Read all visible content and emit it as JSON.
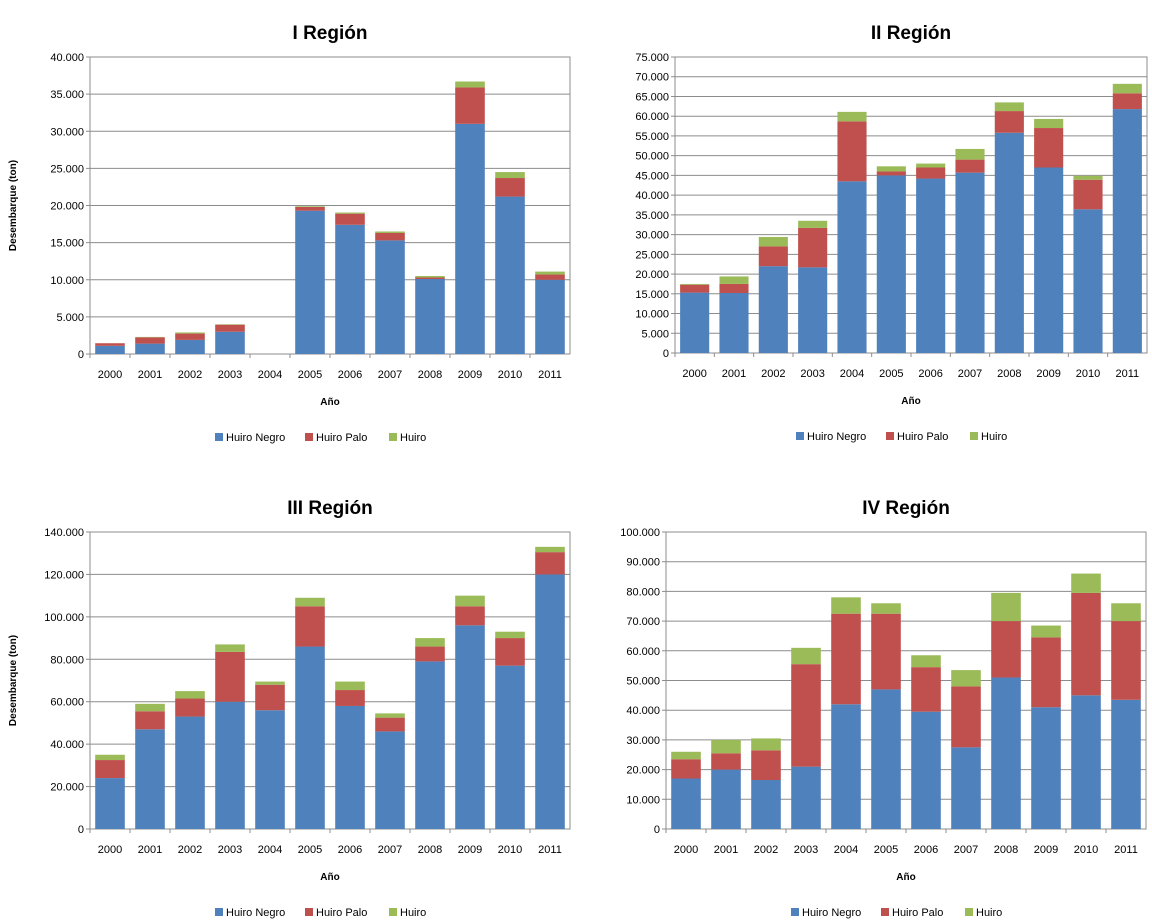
{
  "colors": {
    "Huiro Negro": "#4F81BD",
    "Huiro Palo": "#C0504D",
    "Huiro": "#9BBB59"
  },
  "chart_data": [
    {
      "type": "bar",
      "stacked": true,
      "title": "I Región",
      "xlabel": "Año",
      "ylabel": "Desembarque (ton)",
      "ylim": [
        0,
        40000
      ],
      "ystep": 5000,
      "yticks": [
        "0",
        "5.000",
        "10.000",
        "15.000",
        "20.000",
        "25.000",
        "30.000",
        "35.000",
        "40.000"
      ],
      "categories": [
        "2000",
        "2001",
        "2002",
        "2003",
        "2004",
        "2005",
        "2006",
        "2007",
        "2008",
        "2009",
        "2010",
        "2011"
      ],
      "series": [
        {
          "name": "Huiro Negro",
          "values": [
            1100,
            1400,
            1900,
            3000,
            0,
            19300,
            17400,
            15300,
            10100,
            31000,
            21200,
            10000
          ]
        },
        {
          "name": "Huiro Palo",
          "values": [
            350,
            850,
            850,
            950,
            0,
            500,
            1500,
            1000,
            200,
            4900,
            2500,
            700
          ]
        },
        {
          "name": "Huiro",
          "values": [
            0,
            50,
            150,
            50,
            0,
            100,
            150,
            200,
            200,
            800,
            800,
            400
          ]
        }
      ],
      "legend_position": "bottom",
      "grid": true
    },
    {
      "type": "bar",
      "stacked": true,
      "title": "II Región",
      "xlabel": "Año",
      "ylabel": "Desembarque (ton)",
      "ylim": [
        0,
        75000
      ],
      "ystep": 5000,
      "yticks": [
        "0",
        "5.000",
        "10.000",
        "15.000",
        "20.000",
        "25.000",
        "30.000",
        "35.000",
        "40.000",
        "45.000",
        "50.000",
        "55.000",
        "60.000",
        "65.000",
        "70.000",
        "75.000"
      ],
      "categories": [
        "2000",
        "2001",
        "2002",
        "2003",
        "2004",
        "2005",
        "2006",
        "2007",
        "2008",
        "2009",
        "2010",
        "2011"
      ],
      "series": [
        {
          "name": "Huiro Negro",
          "values": [
            15300,
            15200,
            22000,
            21700,
            43500,
            45000,
            44200,
            45700,
            55800,
            47000,
            36400,
            61800
          ]
        },
        {
          "name": "Huiro Palo",
          "values": [
            2000,
            2300,
            5000,
            10000,
            15200,
            1000,
            2800,
            3300,
            5500,
            10000,
            7500,
            4000
          ]
        },
        {
          "name": "Huiro",
          "values": [
            200,
            1900,
            2400,
            1800,
            2400,
            1300,
            1000,
            2700,
            2200,
            2300,
            1000,
            2400
          ]
        }
      ],
      "legend_position": "bottom",
      "grid": true
    },
    {
      "type": "bar",
      "stacked": true,
      "title": "III Región",
      "xlabel": "Año",
      "ylabel": "Desembarque (ton)",
      "ylim": [
        0,
        140000
      ],
      "ystep": 20000,
      "yticks": [
        "0",
        "20.000",
        "40.000",
        "60.000",
        "80.000",
        "100.000",
        "120.000",
        "140.000"
      ],
      "categories": [
        "2000",
        "2001",
        "2002",
        "2003",
        "2004",
        "2005",
        "2006",
        "2007",
        "2008",
        "2009",
        "2010",
        "2011"
      ],
      "series": [
        {
          "name": "Huiro Negro",
          "values": [
            24000,
            47000,
            53000,
            60000,
            56000,
            86000,
            58000,
            46000,
            79000,
            96000,
            77000,
            120000
          ]
        },
        {
          "name": "Huiro Palo",
          "values": [
            8500,
            8500,
            8500,
            23500,
            12000,
            19000,
            7500,
            6500,
            7000,
            9000,
            13000,
            10500
          ]
        },
        {
          "name": "Huiro",
          "values": [
            2500,
            3500,
            3500,
            3500,
            1500,
            4000,
            4000,
            2000,
            4000,
            5000,
            3000,
            2500
          ]
        }
      ],
      "legend_position": "bottom",
      "grid": true
    },
    {
      "type": "bar",
      "stacked": true,
      "title": "IV Región",
      "xlabel": "Año",
      "ylabel": "Desembarque (ton)",
      "ylim": [
        0,
        100000
      ],
      "ystep": 10000,
      "yticks": [
        "0",
        "10.000",
        "20.000",
        "30.000",
        "40.000",
        "50.000",
        "60.000",
        "70.000",
        "80.000",
        "90.000",
        "100.000"
      ],
      "categories": [
        "2000",
        "2001",
        "2002",
        "2003",
        "2004",
        "2005",
        "2006",
        "2007",
        "2008",
        "2009",
        "2010",
        "2011"
      ],
      "series": [
        {
          "name": "Huiro Negro",
          "values": [
            17000,
            20000,
            16500,
            21000,
            42000,
            47000,
            39500,
            27500,
            51000,
            41000,
            45000,
            43500
          ]
        },
        {
          "name": "Huiro Palo",
          "values": [
            6500,
            5500,
            10000,
            34500,
            30500,
            25500,
            15000,
            20500,
            19000,
            23500,
            34500,
            26500
          ]
        },
        {
          "name": "Huiro",
          "values": [
            2500,
            4500,
            4000,
            5500,
            5500,
            3500,
            4000,
            5500,
            9500,
            4000,
            6500,
            6000
          ]
        }
      ],
      "legend_position": "bottom",
      "grid": true
    }
  ]
}
